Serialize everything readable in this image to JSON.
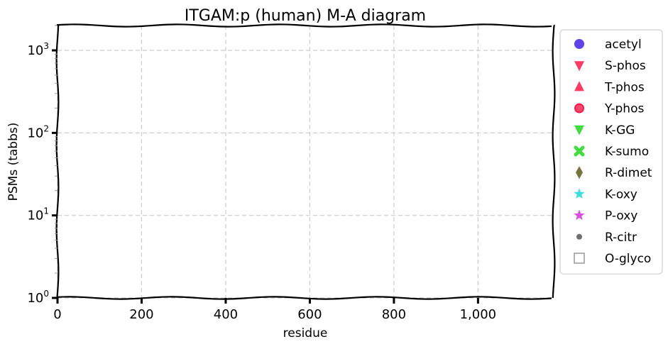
{
  "chart_data": {
    "type": "scatter",
    "title": "ITGAM:p (human) M-A diagram",
    "xlabel": "residue",
    "ylabel": "PSMs (tabbs)",
    "xlim": [
      0,
      1180
    ],
    "ylim": [
      1,
      2000
    ],
    "yscale": "log",
    "grid": true,
    "legend_position": "right",
    "x_ticks": [
      0,
      200,
      400,
      600,
      800,
      1000
    ],
    "x_tick_labels": [
      "0",
      "200",
      "400",
      "600",
      "800",
      "1,000"
    ],
    "y_ticks": [
      1,
      10,
      100,
      1000
    ],
    "y_tick_labels": [
      {
        "base": "10",
        "exp": "0"
      },
      {
        "base": "10",
        "exp": "1"
      },
      {
        "base": "10",
        "exp": "2"
      },
      {
        "base": "10",
        "exp": "3"
      }
    ],
    "series": [
      {
        "name": "acetyl",
        "marker": "circle",
        "color": "#3a14e6",
        "points": []
      },
      {
        "name": "S-phos",
        "marker": "triangle-down",
        "color": "#ff1a4a",
        "points": []
      },
      {
        "name": "T-phos",
        "marker": "triangle-up",
        "color": "#ff1a4a",
        "points": []
      },
      {
        "name": "Y-phos",
        "marker": "circle-ring",
        "color": "#ff1a4a",
        "points": []
      },
      {
        "name": "K-GG",
        "marker": "triangle-down",
        "color": "#1fd61f",
        "points": []
      },
      {
        "name": "K-sumo",
        "marker": "x",
        "color": "#1fd61f",
        "points": []
      },
      {
        "name": "R-dimet",
        "marker": "diamond",
        "color": "#5f5a1e",
        "points": []
      },
      {
        "name": "K-oxy",
        "marker": "star",
        "color": "#22d4d4",
        "points": []
      },
      {
        "name": "P-oxy",
        "marker": "star",
        "color": "#d433d4",
        "points": []
      },
      {
        "name": "R-citr",
        "marker": "small-circle",
        "color": "#555555",
        "points": []
      },
      {
        "name": "O-glyco",
        "marker": "square-open",
        "color": "#999999",
        "points": []
      }
    ]
  }
}
